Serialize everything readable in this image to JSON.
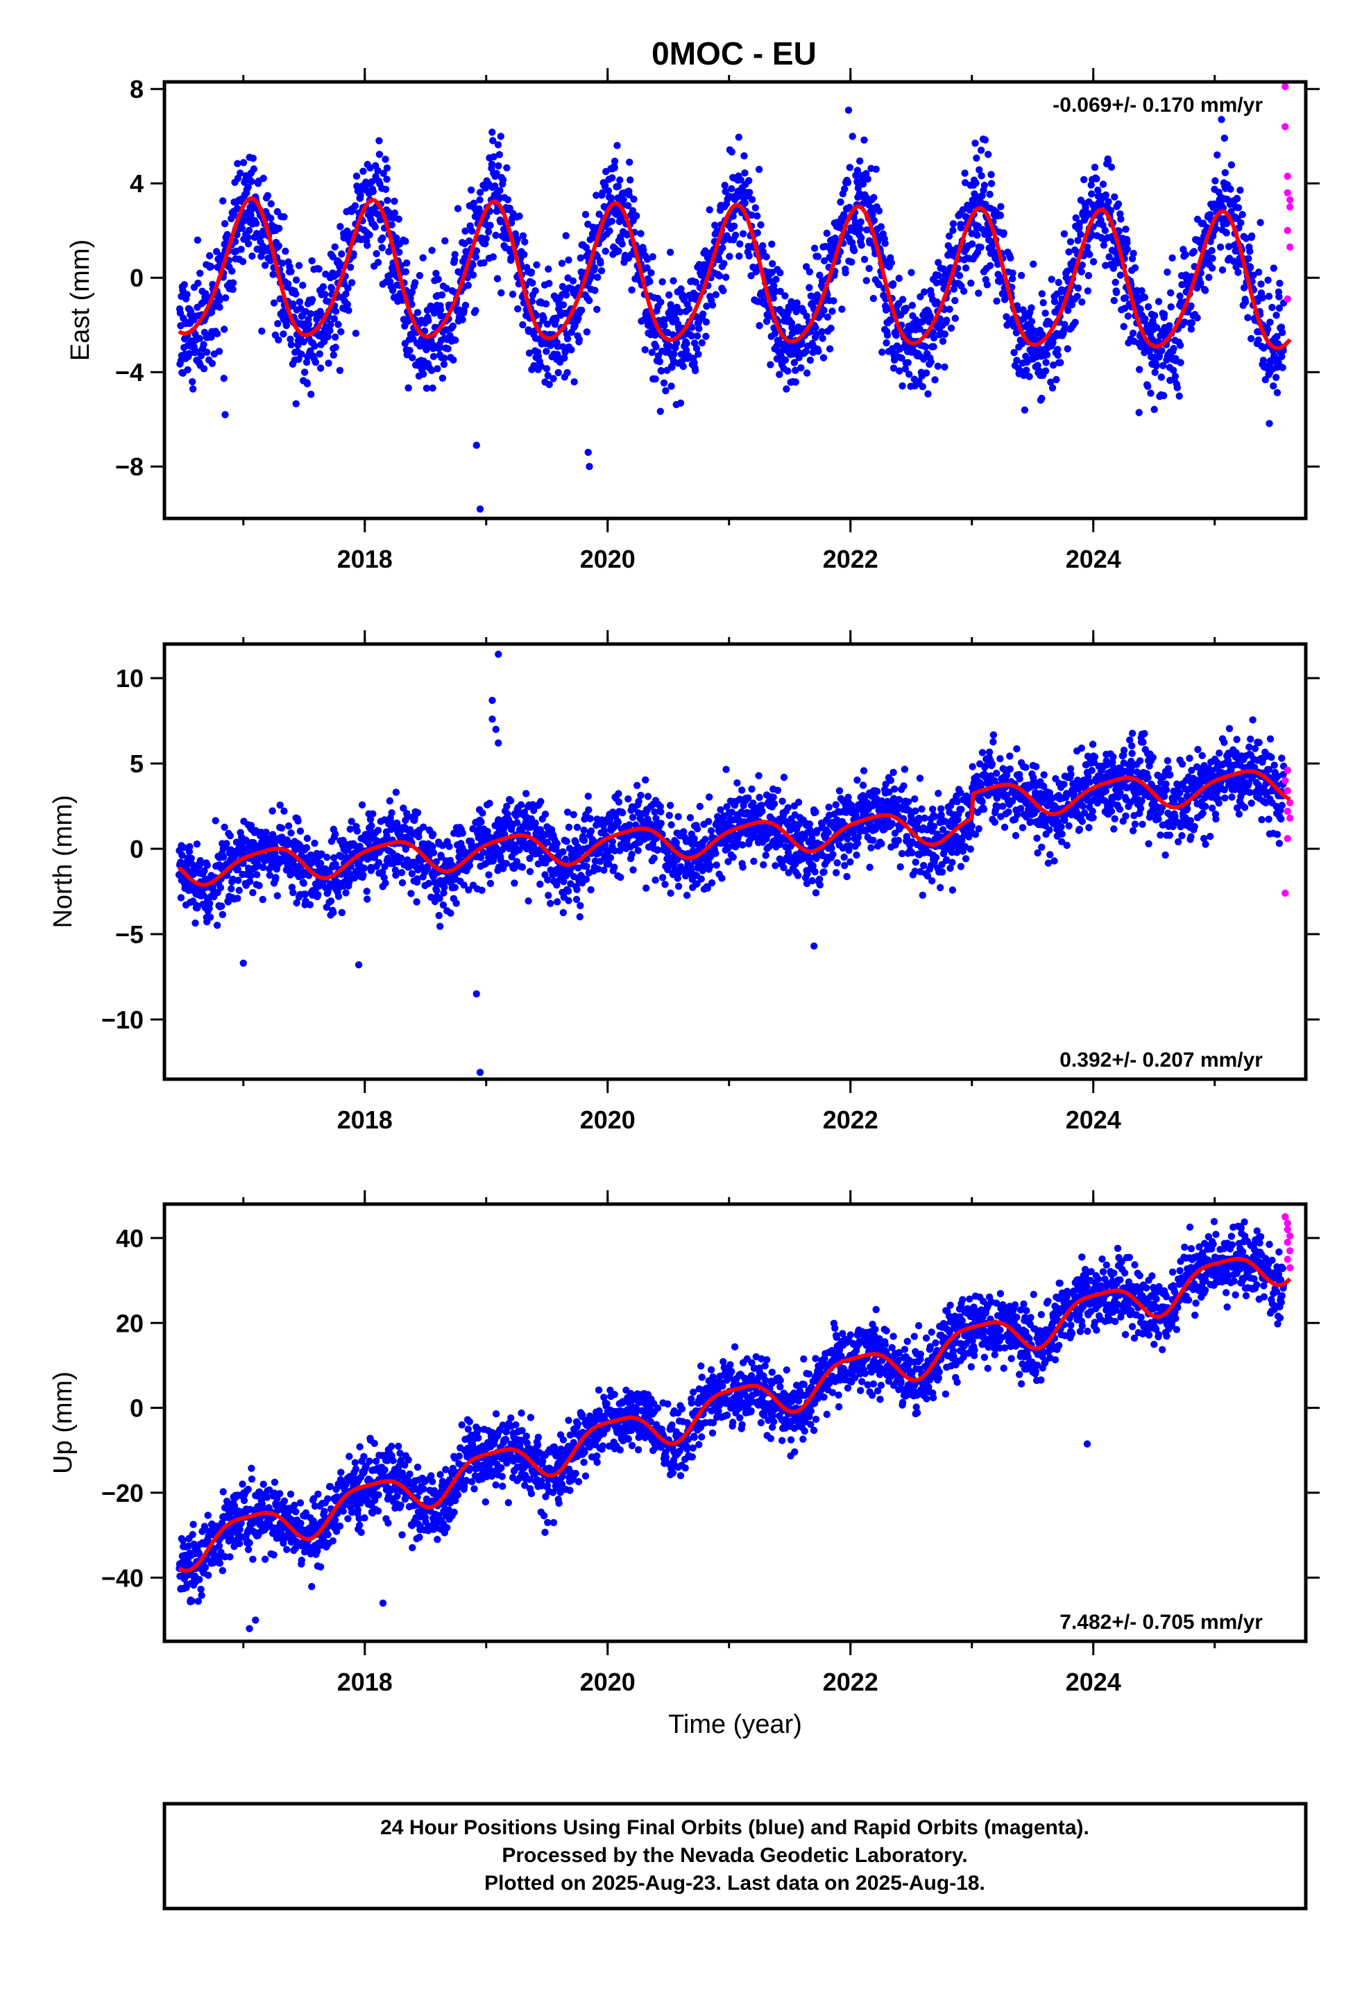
{
  "page": {
    "title": "0MOC - EU",
    "footer_lines": [
      "24 Hour Positions Using Final Orbits (blue) and Rapid Orbits (magenta).",
      "Processed by the Nevada Geodetic Laboratory.",
      "Plotted on 2025-Aug-23. Last data on 2025-Aug-18."
    ]
  },
  "colors": {
    "final_orbits": "#0000ff",
    "rapid_orbits": "#ff00ff",
    "model_fit": "#ff0000",
    "frame": "#000000"
  },
  "chart_data": [
    {
      "type": "scatter",
      "panel": "east",
      "title": "0MOC - EU",
      "ylabel": "East (mm)",
      "xlabel": "",
      "xlim": [
        2016.35,
        2025.75
      ],
      "ylim": [
        -10.2,
        8.3
      ],
      "yticks": [
        -8,
        -4,
        0,
        4,
        8
      ],
      "xticks": [
        2018,
        2020,
        2022,
        2024
      ],
      "rate_text": "-0.069+/- 0.170 mm/yr",
      "rate_position": "top-right",
      "fit": {
        "offset": 0.25,
        "slope": -0.069,
        "amp_annual": 2.85,
        "phase_annual": 1.05,
        "amp_semi": 0.35,
        "phase_semi": 0.6
      },
      "scatter_sigma": 1.2,
      "spikes": [
        [
          2018.95,
          -9.8
        ],
        [
          2019.85,
          -8.0
        ],
        [
          2019.84,
          -7.4
        ],
        [
          2018.92,
          -7.1
        ],
        [
          2016.85,
          -5.8
        ]
      ],
      "rapid_points": [
        [
          2025.58,
          8.1
        ],
        [
          2025.58,
          6.4
        ],
        [
          2025.6,
          4.3
        ],
        [
          2025.6,
          3.6
        ],
        [
          2025.62,
          3.3
        ],
        [
          2025.62,
          3.0
        ],
        [
          2025.6,
          2.0
        ],
        [
          2025.62,
          1.3
        ],
        [
          2025.6,
          -0.9
        ]
      ],
      "series": [
        {
          "name": "Final Orbits",
          "color": "#0000ff"
        },
        {
          "name": "Rapid Orbits",
          "color": "#ff00ff"
        }
      ]
    },
    {
      "type": "scatter",
      "panel": "north",
      "ylabel": "North (mm)",
      "xlabel": "",
      "xlim": [
        2016.35,
        2025.75
      ],
      "ylim": [
        -13.5,
        12.0
      ],
      "yticks": [
        -10,
        -5,
        0,
        5,
        10
      ],
      "xticks": [
        2018,
        2020,
        2022,
        2024
      ],
      "rate_text": "0.392+/- 0.207 mm/yr",
      "rate_position": "bottom-right",
      "fit": {
        "offset": -1.1,
        "slope": 0.392,
        "amp_annual": 0.9,
        "phase_annual": 0.2,
        "amp_semi": 0.2,
        "phase_semi": 0.4
      },
      "steps": [
        [
          2023.0,
          1.4
        ]
      ],
      "scatter_sigma": 1.1,
      "spikes": [
        [
          2018.95,
          -13.1
        ],
        [
          2018.92,
          -8.5
        ],
        [
          2017.0,
          -6.7
        ],
        [
          2017.95,
          -6.8
        ],
        [
          2021.7,
          -5.7
        ],
        [
          2019.1,
          11.4
        ],
        [
          2019.05,
          8.7
        ],
        [
          2019.05,
          7.6
        ],
        [
          2019.08,
          7.0
        ],
        [
          2019.1,
          6.2
        ]
      ],
      "rapid_points": [
        [
          2025.6,
          4.6
        ],
        [
          2025.58,
          4.0
        ],
        [
          2025.6,
          3.4
        ],
        [
          2025.62,
          2.7
        ],
        [
          2025.6,
          2.2
        ],
        [
          2025.62,
          1.8
        ],
        [
          2025.6,
          0.6
        ],
        [
          2025.58,
          -2.6
        ]
      ],
      "series": [
        {
          "name": "Final Orbits",
          "color": "#0000ff"
        },
        {
          "name": "Rapid Orbits",
          "color": "#ff00ff"
        }
      ]
    },
    {
      "type": "scatter",
      "panel": "up",
      "ylabel": "Up (mm)",
      "xlabel": "Time (year)",
      "xlim": [
        2016.35,
        2025.75
      ],
      "ylim": [
        -55.0,
        48.0
      ],
      "yticks": [
        -40,
        -20,
        0,
        20,
        40
      ],
      "xticks": [
        2018,
        2020,
        2022,
        2024
      ],
      "rate_text": "7.482+/- 0.705 mm/yr",
      "rate_position": "bottom-right",
      "fit": {
        "offset": -33.0,
        "slope": 7.482,
        "amp_annual": 4.5,
        "phase_annual": 0.05,
        "amp_semi": 1.2,
        "phase_semi": 0.3
      },
      "scatter_sigma": 4.0,
      "spikes": [
        [
          2017.05,
          -52.0
        ],
        [
          2017.1,
          -50.0
        ],
        [
          2018.15,
          -46.0
        ],
        [
          2023.95,
          -8.5
        ]
      ],
      "rapid_points": [
        [
          2025.58,
          45.0
        ],
        [
          2025.6,
          43.5
        ],
        [
          2025.6,
          42.0
        ],
        [
          2025.62,
          40.5
        ],
        [
          2025.6,
          39.0
        ],
        [
          2025.62,
          37.0
        ],
        [
          2025.6,
          35.0
        ],
        [
          2025.62,
          33.0
        ]
      ],
      "series": [
        {
          "name": "Final Orbits",
          "color": "#0000ff"
        },
        {
          "name": "Rapid Orbits",
          "color": "#ff00ff"
        }
      ]
    }
  ]
}
